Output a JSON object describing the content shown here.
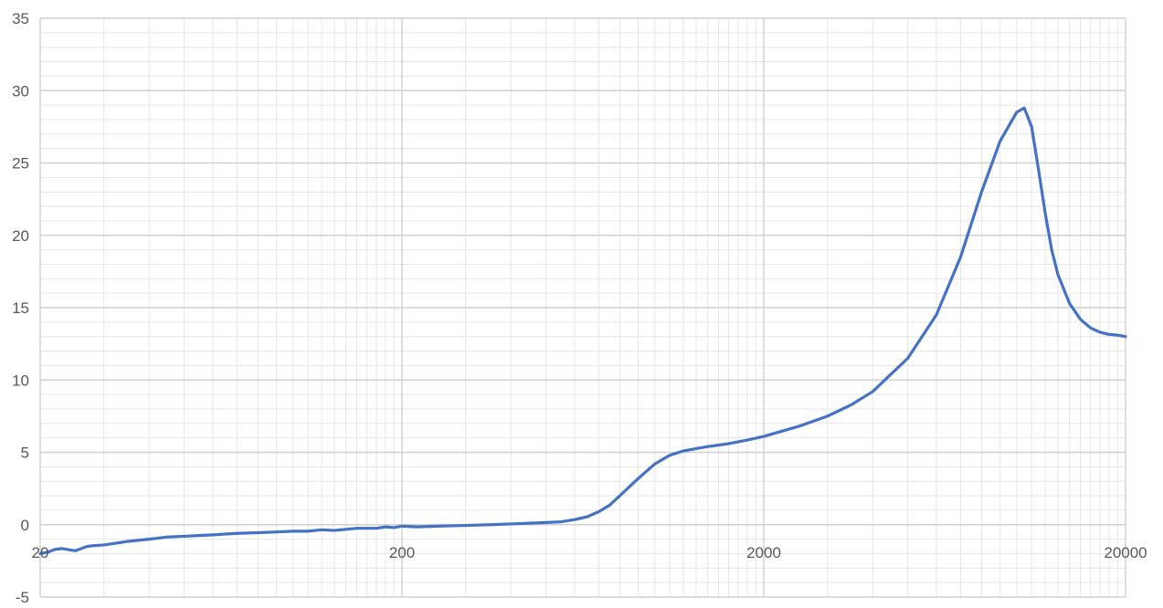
{
  "chart_data": {
    "type": "line",
    "title": "",
    "xlabel": "",
    "ylabel": "",
    "x_scale": "log",
    "xlim": [
      20,
      20000
    ],
    "ylim": [
      -5,
      35
    ],
    "x_ticks": [
      20,
      200,
      2000,
      20000
    ],
    "x_tick_labels": [
      "20",
      "200",
      "2000",
      "20000"
    ],
    "y_ticks": [
      -5,
      0,
      5,
      10,
      15,
      20,
      25,
      30,
      35
    ],
    "y_tick_labels": [
      "-5",
      "0",
      "5",
      "10",
      "15",
      "20",
      "25",
      "30",
      "35"
    ],
    "grid": true,
    "legend": "none",
    "line_color": "#4472c4",
    "series": [
      {
        "x": [
          20,
          21,
          22,
          23,
          25,
          27,
          28,
          30,
          35,
          40,
          45,
          50,
          55,
          60,
          70,
          80,
          90,
          100,
          110,
          120,
          130,
          150,
          170,
          180,
          190,
          200,
          220,
          250,
          300,
          350,
          400,
          450,
          500,
          550,
          600,
          650,
          700,
          750,
          800,
          900,
          1000,
          1100,
          1200,
          1400,
          1600,
          1800,
          2000,
          2500,
          3000,
          3500,
          4000,
          5000,
          6000,
          7000,
          8000,
          9000,
          10000,
          10500,
          11000,
          11500,
          12000,
          12500,
          13000,
          14000,
          15000,
          16000,
          17000,
          18000,
          19000,
          20000
        ],
        "y": [
          -2.0,
          -1.9,
          -1.7,
          -1.65,
          -1.8,
          -1.5,
          -1.45,
          -1.4,
          -1.15,
          -1.0,
          -0.85,
          -0.8,
          -0.75,
          -0.7,
          -0.6,
          -0.55,
          -0.5,
          -0.45,
          -0.45,
          -0.35,
          -0.4,
          -0.25,
          -0.25,
          -0.15,
          -0.2,
          -0.1,
          -0.15,
          -0.1,
          -0.05,
          0.0,
          0.05,
          0.1,
          0.15,
          0.2,
          0.35,
          0.55,
          0.9,
          1.35,
          2.0,
          3.2,
          4.2,
          4.8,
          5.1,
          5.4,
          5.6,
          5.85,
          6.1,
          6.8,
          7.5,
          8.3,
          9.2,
          11.5,
          14.5,
          18.5,
          23.0,
          26.5,
          28.5,
          28.8,
          27.5,
          24.5,
          21.5,
          19.0,
          17.3,
          15.3,
          14.2,
          13.6,
          13.3,
          13.15,
          13.1,
          13.0
        ]
      }
    ]
  }
}
